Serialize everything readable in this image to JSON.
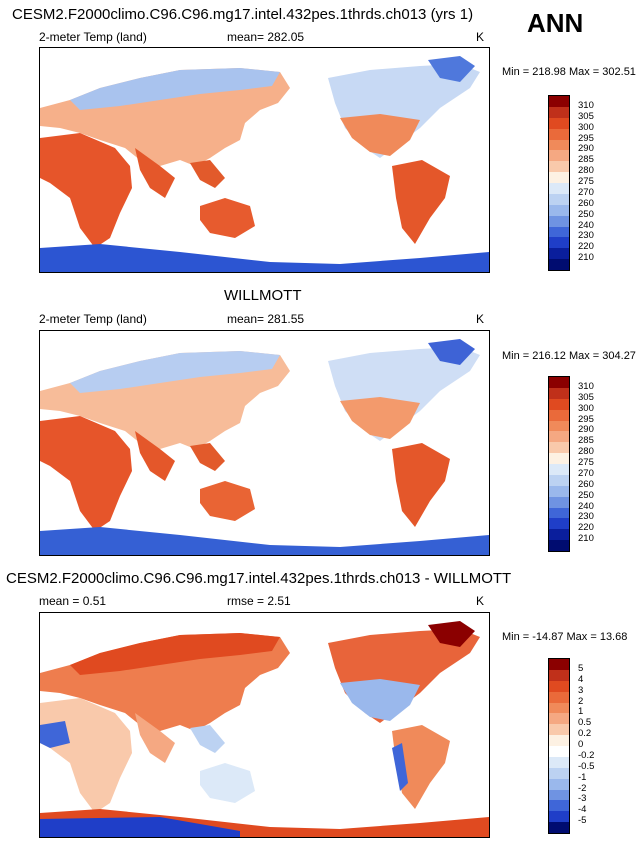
{
  "season": "ANN",
  "colors": {
    "land_fill": "#d9d9d9",
    "ocean": "#ffffff"
  },
  "panels": [
    {
      "id": "test",
      "title": "CESM2.F2000climo.C96.C96.mg17.intel.432pes.1thrds.ch013 (yrs 1)",
      "variable": "2-meter Temp (land)",
      "stat_label": "mean= 282.05",
      "units": "K",
      "minmax": "Min = 218.98 Max = 302.51",
      "levels": [
        "310",
        "305",
        "300",
        "295",
        "290",
        "285",
        "280",
        "275",
        "270",
        "260",
        "250",
        "240",
        "230",
        "220",
        "210"
      ],
      "colors": [
        "#8b0000",
        "#c0301a",
        "#e04a20",
        "#ea6a3a",
        "#f08a5a",
        "#f5a882",
        "#f9c9ab",
        "#fdf1e3",
        "#dce9f8",
        "#bcd2f2",
        "#9ab8ec",
        "#6f93e2",
        "#3f66d8",
        "#1f3ec8",
        "#0a1e9c",
        "#000c70"
      ]
    },
    {
      "id": "reference",
      "title": "WILLMOTT",
      "variable": "2-meter Temp (land)",
      "stat_label": "mean= 281.55",
      "units": "K",
      "minmax": "Min = 216.12 Max = 304.27",
      "levels": [
        "310",
        "305",
        "300",
        "295",
        "290",
        "285",
        "280",
        "275",
        "270",
        "260",
        "250",
        "240",
        "230",
        "220",
        "210"
      ],
      "colors": [
        "#8b0000",
        "#c0301a",
        "#e04a20",
        "#ea6a3a",
        "#f08a5a",
        "#f5a882",
        "#f9c9ab",
        "#fdf1e3",
        "#dce9f8",
        "#bcd2f2",
        "#9ab8ec",
        "#6f93e2",
        "#3f66d8",
        "#1f3ec8",
        "#0a1e9c",
        "#000c70"
      ]
    },
    {
      "id": "diff",
      "title": "CESM2.F2000climo.C96.C96.mg17.intel.432pes.1thrds.ch013 - WILLMOTT",
      "stat_label": "mean =   0.51",
      "stat2_label": "rmse =   2.51",
      "units": "K",
      "minmax": "Min = -14.87 Max =  13.68",
      "levels": [
        "5",
        "4",
        "3",
        "2",
        "1",
        "0.5",
        "0.2",
        "0",
        "-0.2",
        "-0.5",
        "-1",
        "-2",
        "-3",
        "-4",
        "-5"
      ],
      "colors": [
        "#8b0000",
        "#c0301a",
        "#e04a20",
        "#ea6a3a",
        "#f08a5a",
        "#f5a882",
        "#f9c9ab",
        "#fdf1e3",
        "#ffffff",
        "#dce9f8",
        "#bcd2f2",
        "#9ab8ec",
        "#6f93e2",
        "#3f66d8",
        "#1f3ec8",
        "#000c70"
      ]
    }
  ]
}
